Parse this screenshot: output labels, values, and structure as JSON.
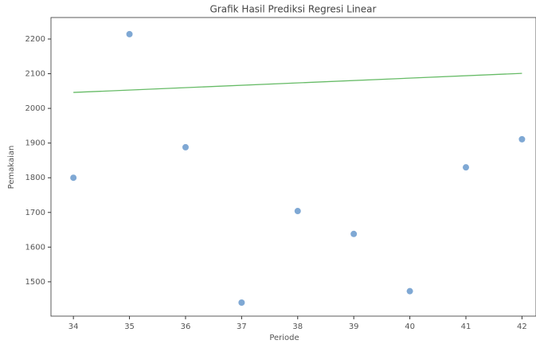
{
  "chart_data": {
    "type": "scatter",
    "title": "Grafik Hasil Prediksi Regresi Linear",
    "x_label": "Periode",
    "y_label": "Pemakaian",
    "x": [
      34,
      35,
      36,
      37,
      38,
      39,
      40,
      41,
      42
    ],
    "values": [
      1800,
      2214,
      1888,
      1440,
      1704,
      1638,
      1473,
      1830,
      1911
    ],
    "color": "#7fa8d4",
    "line": {
      "x": [
        34,
        42
      ],
      "values": [
        2046,
        2101
      ],
      "color": "#66bb66"
    },
    "xlim": [
      33.6,
      42.25
    ],
    "ylim": [
      1401,
      2262
    ],
    "xticks": [
      34,
      35,
      36,
      37,
      38,
      39,
      40,
      41,
      42
    ],
    "yticks": [
      1500,
      1600,
      1700,
      1800,
      1900,
      2000,
      2100,
      2200
    ]
  }
}
